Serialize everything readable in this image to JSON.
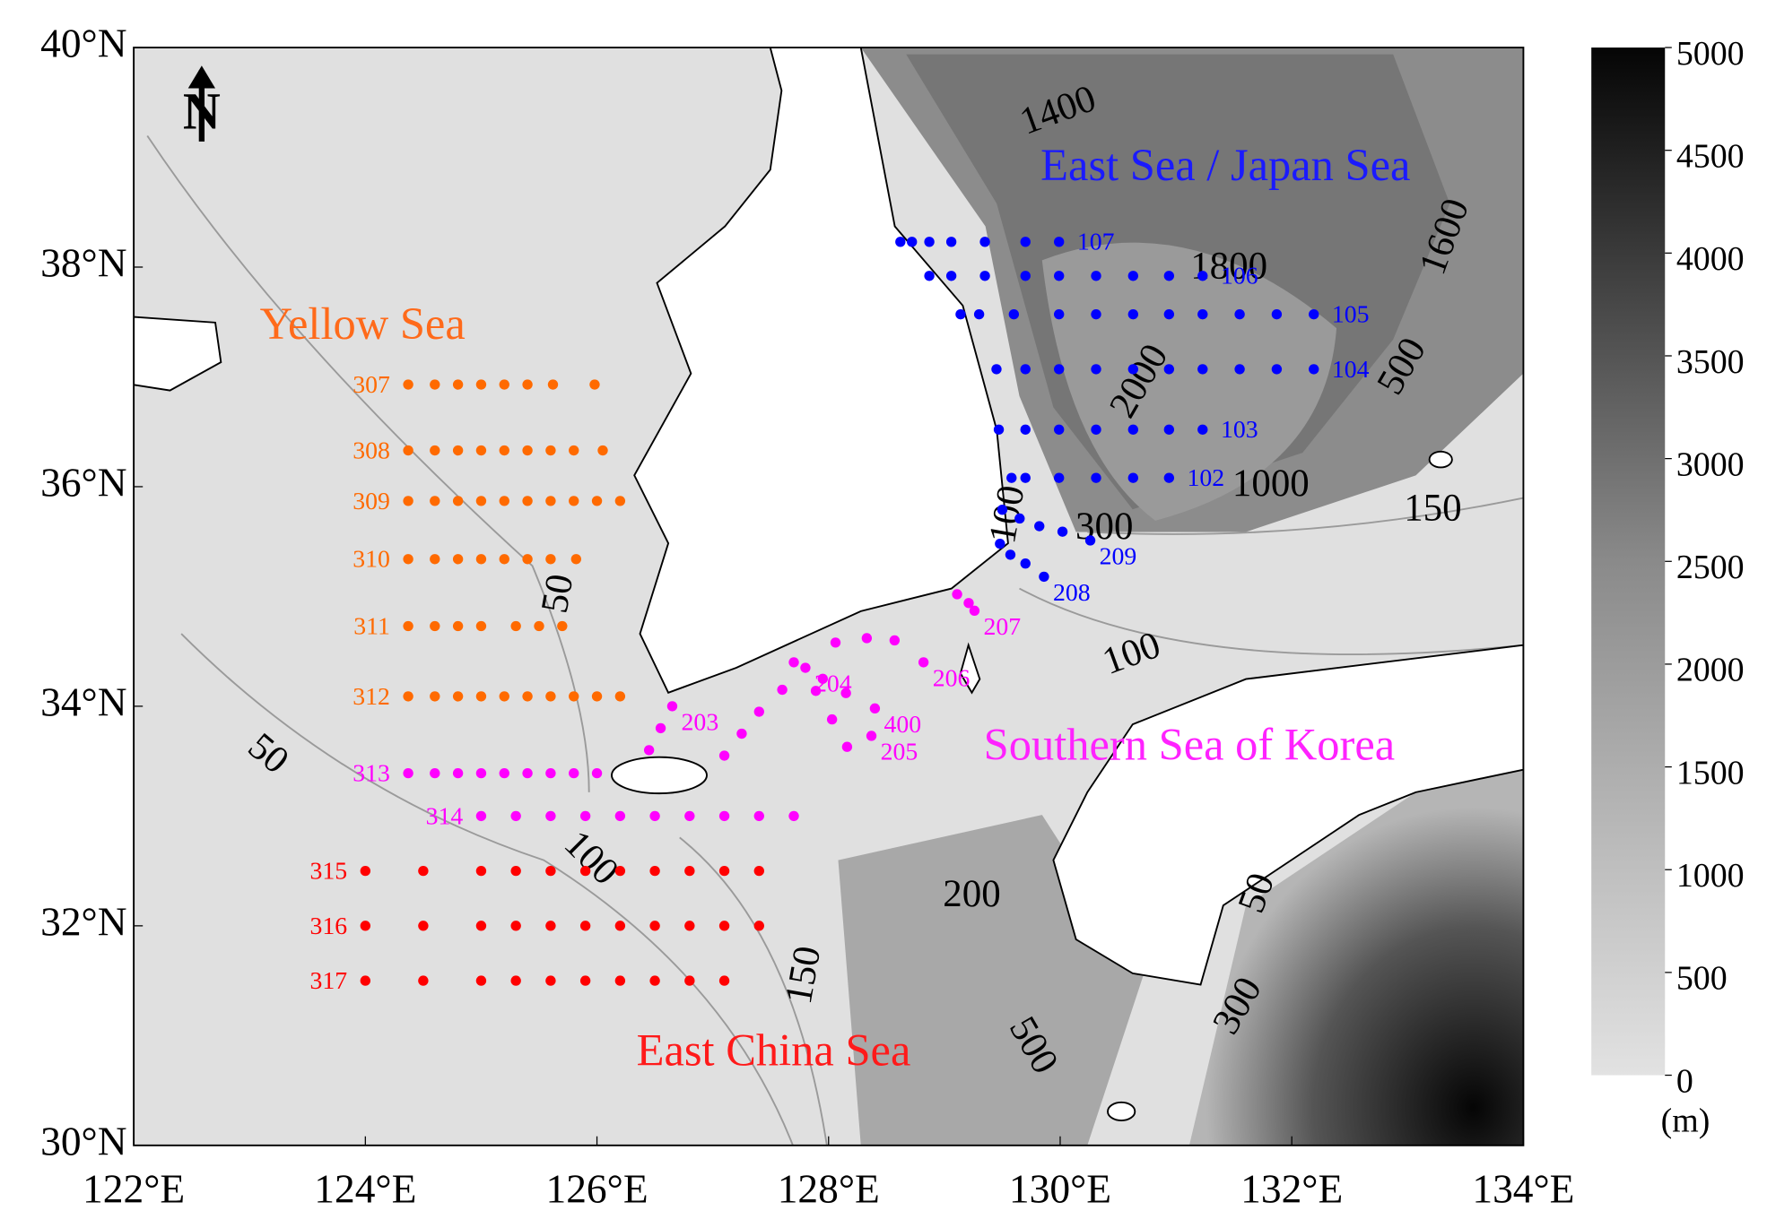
{
  "map": {
    "xlim": [
      122,
      134
    ],
    "ylim": [
      30,
      40
    ],
    "xticks": [
      {
        "value": 122,
        "label": "122°E"
      },
      {
        "value": 124,
        "label": "124°E"
      },
      {
        "value": 126,
        "label": "126°E"
      },
      {
        "value": 128,
        "label": "128°E"
      },
      {
        "value": 130,
        "label": "130°E"
      },
      {
        "value": 132,
        "label": "132°E"
      },
      {
        "value": 134,
        "label": "134°E"
      }
    ],
    "yticks": [
      {
        "value": 30,
        "label": "30°N"
      },
      {
        "value": 32,
        "label": "32°N"
      },
      {
        "value": 34,
        "label": "34°N"
      },
      {
        "value": 36,
        "label": "36°N"
      },
      {
        "value": 38,
        "label": "38°N"
      },
      {
        "value": 40,
        "label": "40°N"
      }
    ],
    "north_label": "N",
    "regions": [
      {
        "name": "Yellow Sea",
        "color": "#ff6a1a"
      },
      {
        "name": "East Sea / Japan Sea",
        "color": "#1a1aff"
      },
      {
        "name": "Southern Sea of Korea",
        "color": "#ff22ff"
      },
      {
        "name": "East China Sea",
        "color": "#ff1a1a"
      }
    ],
    "contour_labels": [
      1400,
      1800,
      1600,
      2000,
      500,
      1000,
      150,
      300,
      100,
      100,
      50,
      50,
      100,
      200,
      150,
      500,
      300,
      50
    ],
    "transects": [
      {
        "label": "307",
        "color": "#ff6a00",
        "lat": 36.93,
        "lons": [
          124.37,
          124.6,
          124.8,
          125.0,
          125.2,
          125.4,
          125.62,
          125.98
        ]
      },
      {
        "label": "308",
        "color": "#ff6a00",
        "lat": 36.33,
        "lons": [
          124.37,
          124.6,
          124.8,
          125.0,
          125.2,
          125.4,
          125.6,
          125.8,
          126.05
        ]
      },
      {
        "label": "309",
        "color": "#ff6a00",
        "lat": 35.87,
        "lons": [
          124.37,
          124.6,
          124.8,
          125.0,
          125.2,
          125.4,
          125.6,
          125.8,
          126.0,
          126.2
        ]
      },
      {
        "label": "310",
        "color": "#ff6a00",
        "lat": 35.34,
        "lons": [
          124.37,
          124.6,
          124.8,
          125.0,
          125.2,
          125.4,
          125.6,
          125.82
        ]
      },
      {
        "label": "311",
        "color": "#ff6a00",
        "lat": 34.73,
        "lons": [
          124.37,
          124.6,
          124.8,
          125.0,
          125.3,
          125.5,
          125.7
        ]
      },
      {
        "label": "312",
        "color": "#ff6a00",
        "lat": 34.09,
        "lons": [
          124.37,
          124.6,
          124.8,
          125.0,
          125.2,
          125.4,
          125.6,
          125.8,
          126.0,
          126.2
        ]
      },
      {
        "label": "313",
        "color": "#ff00ff",
        "lat": 33.39,
        "lons": [
          124.37,
          124.6,
          124.8,
          125.0,
          125.2,
          125.4,
          125.6,
          125.8,
          126.0
        ]
      },
      {
        "label": "314",
        "color": "#ff00ff",
        "lat": 33.0,
        "lons": [
          125.0,
          125.3,
          125.6,
          125.9,
          126.2,
          126.5,
          126.8,
          127.1,
          127.4,
          127.7
        ]
      },
      {
        "label": "315",
        "color": "#ff0000",
        "lat": 32.5,
        "lons": [
          124.0,
          124.5,
          125.0,
          125.3,
          125.6,
          125.9,
          126.2,
          126.5,
          126.8,
          127.1,
          127.4
        ]
      },
      {
        "label": "316",
        "color": "#ff0000",
        "lat": 32.0,
        "lons": [
          124.0,
          124.5,
          125.0,
          125.3,
          125.6,
          125.9,
          126.2,
          126.5,
          126.8,
          127.1,
          127.4
        ]
      },
      {
        "label": "317",
        "color": "#ff0000",
        "lat": 31.5,
        "lons": [
          124.0,
          124.5,
          125.0,
          125.3,
          125.6,
          125.9,
          126.2,
          126.5,
          126.8,
          127.1
        ]
      },
      {
        "label": "107",
        "color": "#0000ff",
        "lat": 38.23,
        "lons": [
          128.62,
          128.72,
          128.87,
          129.06,
          129.35,
          129.7,
          129.99
        ]
      },
      {
        "label": "106",
        "color": "#0000ff",
        "lat": 37.92,
        "lons": [
          128.87,
          129.06,
          129.35,
          129.7,
          129.99,
          130.31,
          130.63,
          130.94,
          131.23
        ]
      },
      {
        "label": "105",
        "color": "#0000ff",
        "lat": 37.57,
        "lons": [
          129.14,
          129.3,
          129.6,
          129.99,
          130.31,
          130.63,
          130.94,
          131.23,
          131.55,
          131.87,
          132.19
        ]
      },
      {
        "label": "104",
        "color": "#0000ff",
        "lat": 37.07,
        "lons": [
          129.45,
          129.7,
          129.99,
          130.31,
          130.63,
          130.94,
          131.23,
          131.55,
          131.87,
          132.19
        ]
      },
      {
        "label": "103",
        "color": "#0000ff",
        "lat": 36.52,
        "lons": [
          129.47,
          129.7,
          129.99,
          130.31,
          130.63,
          130.94,
          131.23
        ]
      },
      {
        "label": "102",
        "color": "#0000ff",
        "lat": 36.08,
        "lons": [
          129.58,
          129.7,
          129.99,
          130.31,
          130.63,
          130.94
        ]
      },
      {
        "label": "209",
        "color": "#0000ff",
        "points": [
          [
            129.5,
            35.79
          ],
          [
            129.65,
            35.71
          ],
          [
            129.82,
            35.64
          ],
          [
            130.02,
            35.59
          ],
          [
            130.26,
            35.51
          ]
        ]
      },
      {
        "label": "208",
        "color": "#0000ff",
        "points": [
          [
            129.48,
            35.48
          ],
          [
            129.57,
            35.38
          ],
          [
            129.7,
            35.3
          ],
          [
            129.86,
            35.18
          ]
        ]
      },
      {
        "label": "207",
        "color": "#ff00ff",
        "points": [
          [
            129.11,
            35.02
          ],
          [
            129.21,
            34.94
          ],
          [
            129.26,
            34.87
          ]
        ]
      },
      {
        "label": "206",
        "color": "#ff00ff",
        "points": [
          [
            128.06,
            34.58
          ],
          [
            128.33,
            34.62
          ],
          [
            128.57,
            34.6
          ],
          [
            128.82,
            34.4
          ]
        ]
      },
      {
        "label": "400",
        "color": "#ff00ff",
        "points": [
          [
            127.7,
            34.4
          ],
          [
            127.95,
            34.25
          ],
          [
            128.15,
            34.12
          ],
          [
            128.4,
            33.98
          ]
        ]
      },
      {
        "label": "205",
        "color": "#ff00ff",
        "points": [
          [
            127.89,
            34.14
          ],
          [
            128.03,
            33.88
          ],
          [
            128.16,
            33.63
          ],
          [
            128.37,
            33.73
          ]
        ]
      },
      {
        "label": "204",
        "color": "#ff00ff",
        "points": [
          [
            127.1,
            33.55
          ],
          [
            127.25,
            33.75
          ],
          [
            127.4,
            33.95
          ],
          [
            127.6,
            34.15
          ],
          [
            127.8,
            34.35
          ]
        ]
      },
      {
        "label": "203",
        "color": "#ff00ff",
        "points": [
          [
            126.45,
            33.6
          ],
          [
            126.55,
            33.8
          ],
          [
            126.65,
            34.0
          ]
        ]
      }
    ],
    "colorbar": {
      "ticks": [
        0,
        500,
        1000,
        1500,
        2000,
        2500,
        3000,
        3500,
        4000,
        4500,
        5000
      ],
      "range": [
        0,
        5000
      ],
      "unit": "(m)"
    }
  }
}
